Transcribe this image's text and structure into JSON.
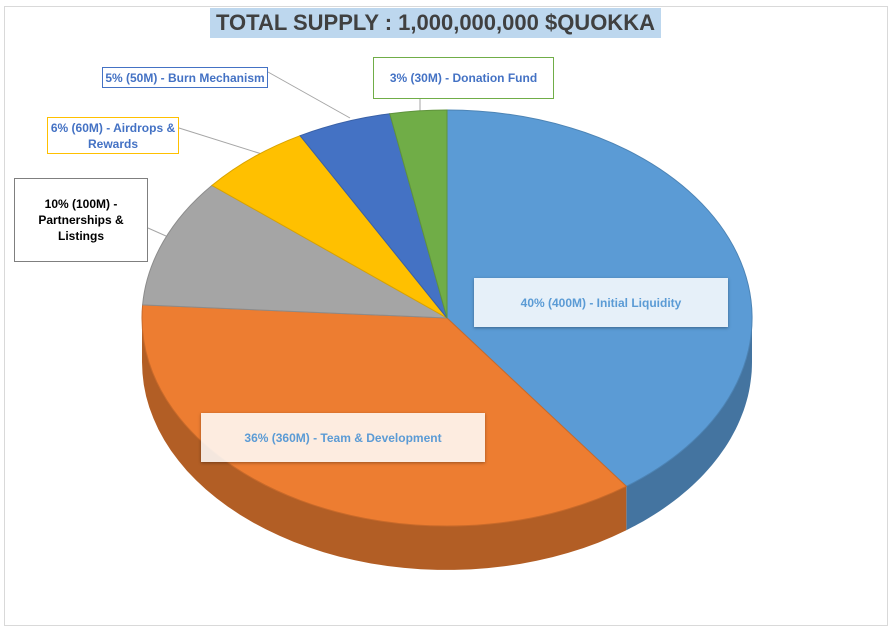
{
  "chart_data": {
    "type": "pie",
    "title": "TOTAL SUPPLY : 1,000,000,000 $QUOKKA",
    "slices": [
      {
        "label": "40% (400M) - Initial Liquidity",
        "value": 40,
        "color": "#5b9bd5",
        "label_color": "#5b9bd5"
      },
      {
        "label": "36% (360M) - Team & Development",
        "value": 36,
        "color": "#ed7d31",
        "label_color": "#5b9bd5"
      },
      {
        "label": "10% (100M) - Partnerships & Listings",
        "value": 10,
        "color": "#a5a5a5",
        "label_color": "#000000"
      },
      {
        "label": "6% (60M) - Airdrops & Rewards",
        "value": 6,
        "color": "#ffc000",
        "label_color": "#4472c4"
      },
      {
        "label": "5% (50M) - Burn Mechanism",
        "value": 5,
        "color": "#4472c4",
        "label_color": "#4472c4"
      },
      {
        "label": "3% (30M) - Donation Fund",
        "value": 3,
        "color": "#70ad47",
        "label_color": "#4472c4"
      }
    ]
  }
}
